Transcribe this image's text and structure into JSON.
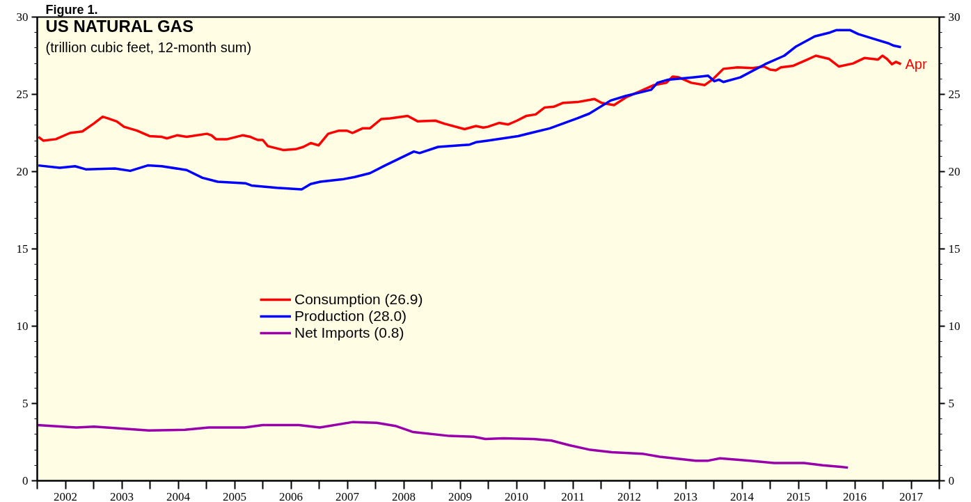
{
  "chart_data": {
    "type": "line",
    "title": "US NATURAL GAS",
    "subtitle": "(trillion cubic feet, 12-month sum)",
    "annotations": [
      "Figure 1.",
      {
        "text": "Apr",
        "x": 2017.32,
        "y": 26.95
      }
    ],
    "series": [
      {
        "name": "Consumption (26.9)",
        "color": "#ff0000",
        "x": [
          2002.02,
          2002.11,
          2002.33,
          2002.58,
          2002.8,
          2003.0,
          2003.16,
          2003.25,
          2003.41,
          2003.54,
          2003.77,
          2003.99,
          2004.21,
          2004.3,
          2004.48,
          2004.65,
          2005.01,
          2005.09,
          2005.17,
          2005.37,
          2005.64,
          2005.78,
          2005.91,
          2006.0,
          2006.09,
          2006.36,
          2006.58,
          2006.72,
          2006.85,
          2006.99,
          2007.16,
          2007.35,
          2007.49,
          2007.59,
          2007.77,
          2007.9,
          2008.1,
          2008.26,
          2008.57,
          2008.75,
          2009.06,
          2009.22,
          2009.58,
          2009.78,
          2009.91,
          2009.99,
          2010.19,
          2010.35,
          2010.51,
          2010.67,
          2010.84,
          2011.0,
          2011.16,
          2011.33,
          2011.58,
          2011.88,
          2012.01,
          2012.23,
          2012.44,
          2012.69,
          2012.94,
          2013.16,
          2013.27,
          2013.38,
          2013.6,
          2013.84,
          2013.99,
          2014.17,
          2014.42,
          2014.69,
          2014.89,
          2015.0,
          2015.1,
          2015.19,
          2015.41,
          2015.63,
          2015.81,
          2016.04,
          2016.22,
          2016.47,
          2016.67,
          2016.91,
          2016.99,
          2017.07,
          2017.16,
          2017.23,
          2017.32
        ],
        "values": [
          22.25,
          22.0,
          22.1,
          22.5,
          22.6,
          23.1,
          23.55,
          23.45,
          23.25,
          22.9,
          22.65,
          22.3,
          22.25,
          22.15,
          22.35,
          22.25,
          22.45,
          22.35,
          22.1,
          22.1,
          22.35,
          22.25,
          22.05,
          22.05,
          21.65,
          21.4,
          21.45,
          21.6,
          21.85,
          21.7,
          22.45,
          22.65,
          22.65,
          22.5,
          22.8,
          22.8,
          23.4,
          23.45,
          23.6,
          23.25,
          23.3,
          23.1,
          22.75,
          22.95,
          22.85,
          22.9,
          23.15,
          23.05,
          23.3,
          23.6,
          23.7,
          24.15,
          24.2,
          24.45,
          24.5,
          24.7,
          24.45,
          24.3,
          24.8,
          25.2,
          25.6,
          25.75,
          26.15,
          26.1,
          25.75,
          25.6,
          26.0,
          26.65,
          26.75,
          26.7,
          26.8,
          26.6,
          26.55,
          26.75,
          26.85,
          27.2,
          27.5,
          27.3,
          26.8,
          27.0,
          27.35,
          27.25,
          27.5,
          27.3,
          26.95,
          27.1,
          26.95
        ]
      },
      {
        "name": "Production (28.0)",
        "color": "#0000ff",
        "x": [
          2002.02,
          2002.4,
          2002.67,
          2002.86,
          2003.38,
          2003.65,
          2003.96,
          2004.21,
          2004.65,
          2004.93,
          2005.2,
          2005.69,
          2005.8,
          2006.25,
          2006.69,
          2006.85,
          2007.02,
          2007.41,
          2007.63,
          2007.9,
          2008.17,
          2008.68,
          2008.78,
          2009.11,
          2009.49,
          2009.67,
          2009.78,
          2009.99,
          2010.53,
          2011.09,
          2011.58,
          2011.79,
          2012.17,
          2012.44,
          2012.89,
          2013.0,
          2013.19,
          2013.65,
          2013.9,
          2014.01,
          2014.09,
          2014.17,
          2014.47,
          2014.91,
          2015.25,
          2015.46,
          2015.79,
          2016.06,
          2016.17,
          2016.42,
          2016.56,
          2016.83,
          2017.1,
          2017.19,
          2017.32
        ],
        "values": [
          20.4,
          20.25,
          20.35,
          20.15,
          20.2,
          20.05,
          20.4,
          20.35,
          20.1,
          19.6,
          19.35,
          19.25,
          19.1,
          18.95,
          18.85,
          19.2,
          19.35,
          19.5,
          19.65,
          19.9,
          20.4,
          21.3,
          21.2,
          21.6,
          21.7,
          21.75,
          21.9,
          22.0,
          22.3,
          22.8,
          23.45,
          23.75,
          24.6,
          24.9,
          25.3,
          25.75,
          25.95,
          26.1,
          26.2,
          25.85,
          25.95,
          25.8,
          26.1,
          26.95,
          27.5,
          28.1,
          28.75,
          29.0,
          29.15,
          29.15,
          28.9,
          28.6,
          28.3,
          28.15,
          28.05
        ]
      },
      {
        "name": "Net Imports (0.8)",
        "color": "#9900aa",
        "x": [
          2002.0,
          2002.69,
          2003.01,
          2003.98,
          2004.62,
          2005.04,
          2005.68,
          2006.0,
          2006.64,
          2007.01,
          2007.6,
          2008.02,
          2008.35,
          2008.67,
          2009.31,
          2009.74,
          2009.95,
          2010.27,
          2010.8,
          2011.12,
          2011.44,
          2011.81,
          2012.19,
          2012.73,
          2013.04,
          2013.68,
          2013.9,
          2014.11,
          2014.64,
          2015.07,
          2015.6,
          2015.93,
          2016.25,
          2016.38
        ],
        "values": [
          3.6,
          3.45,
          3.5,
          3.25,
          3.3,
          3.45,
          3.45,
          3.6,
          3.6,
          3.45,
          3.8,
          3.75,
          3.55,
          3.15,
          2.9,
          2.85,
          2.7,
          2.75,
          2.7,
          2.6,
          2.3,
          2.0,
          1.85,
          1.75,
          1.55,
          1.3,
          1.3,
          1.45,
          1.3,
          1.15,
          1.15,
          1.0,
          0.9,
          0.85
        ]
      }
    ],
    "xlim": [
      2002.0,
      2018.0
    ],
    "xticks": [
      {
        "value": 2002,
        "label": null
      },
      {
        "value": 2002.5,
        "label": "2002"
      },
      {
        "value": 2003,
        "label": null
      },
      {
        "value": 2003.5,
        "label": "2003"
      },
      {
        "value": 2004,
        "label": null
      },
      {
        "value": 2004.5,
        "label": "2004"
      },
      {
        "value": 2005,
        "label": null
      },
      {
        "value": 2005.5,
        "label": "2005"
      },
      {
        "value": 2006,
        "label": null
      },
      {
        "value": 2006.5,
        "label": "2006"
      },
      {
        "value": 2007,
        "label": null
      },
      {
        "value": 2007.5,
        "label": "2007"
      },
      {
        "value": 2008,
        "label": null
      },
      {
        "value": 2008.5,
        "label": "2008"
      },
      {
        "value": 2009,
        "label": null
      },
      {
        "value": 2009.5,
        "label": "2009"
      },
      {
        "value": 2010,
        "label": null
      },
      {
        "value": 2010.5,
        "label": "2010"
      },
      {
        "value": 2011,
        "label": null
      },
      {
        "value": 2011.5,
        "label": "2011"
      },
      {
        "value": 2012,
        "label": null
      },
      {
        "value": 2012.5,
        "label": "2012"
      },
      {
        "value": 2013,
        "label": null
      },
      {
        "value": 2013.5,
        "label": "2013"
      },
      {
        "value": 2014,
        "label": null
      },
      {
        "value": 2014.5,
        "label": "2014"
      },
      {
        "value": 2015,
        "label": null
      },
      {
        "value": 2015.5,
        "label": "2015"
      },
      {
        "value": 2016,
        "label": null
      },
      {
        "value": 2016.5,
        "label": "2016"
      },
      {
        "value": 2017,
        "label": null
      },
      {
        "value": 2017.5,
        "label": "2017"
      },
      {
        "value": 2018,
        "label": null
      }
    ],
    "ylim": [
      0,
      30
    ],
    "yticks": [
      0,
      5,
      10,
      15,
      20,
      25,
      30
    ],
    "y2lim": [
      0,
      30
    ],
    "y2ticks": [
      0,
      5,
      10,
      15,
      20,
      25,
      30
    ],
    "legend": "center",
    "line_style": "solid"
  }
}
